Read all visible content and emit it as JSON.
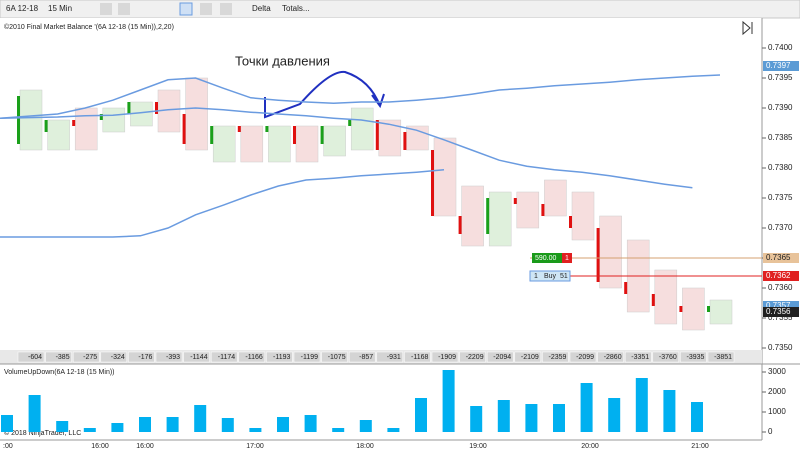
{
  "toolbar": {
    "instrument": "6A 12-18",
    "interval": "15 Min",
    "mode": "Delta",
    "totals": "Totals..."
  },
  "chart_data": [
    {
      "type": "candlestick",
      "title": "©2010 Final Market Balance '(6A 12-18 (15 Min)),2,20)",
      "annotation": "Точки давления",
      "open": [
        0.7384,
        0.7386,
        0.7388,
        0.7388,
        0.7389,
        0.7391,
        0.7389,
        0.7384,
        0.7387,
        0.7386,
        0.7387,
        0.7384,
        0.7387,
        0.7388,
        0.7386,
        0.7383,
        0.7372,
        0.7369,
        0.7375,
        0.7374,
        0.7372,
        0.737,
        0.7361,
        0.7359,
        0.7357,
        0.7356
      ],
      "high": [
        0.7393,
        0.7388,
        0.739,
        0.739,
        0.7391,
        0.7393,
        0.7395,
        0.7387,
        0.7387,
        0.7387,
        0.7387,
        0.7387,
        0.739,
        0.7388,
        0.7387,
        0.7385,
        0.7377,
        0.7376,
        0.7376,
        0.7378,
        0.7376,
        0.7372,
        0.7368,
        0.7363,
        0.736,
        0.7358
      ],
      "low": [
        0.7383,
        0.7383,
        0.7383,
        0.7386,
        0.7387,
        0.7386,
        0.7383,
        0.7381,
        0.7381,
        0.7381,
        0.7381,
        0.7382,
        0.7383,
        0.7382,
        0.7383,
        0.7372,
        0.7367,
        0.7367,
        0.737,
        0.7372,
        0.7368,
        0.736,
        0.7356,
        0.7354,
        0.7353,
        0.7354
      ],
      "close": [
        0.7392,
        0.7388,
        0.7387,
        0.7389,
        0.7391,
        0.7389,
        0.7384,
        0.7387,
        0.7386,
        0.7387,
        0.7384,
        0.7387,
        0.7388,
        0.7383,
        0.7383,
        0.7372,
        0.7369,
        0.7375,
        0.7374,
        0.7372,
        0.737,
        0.7361,
        0.7359,
        0.7357,
        0.7356,
        0.7357
      ],
      "delta": [
        -604,
        -385,
        -275,
        -324,
        -176,
        -393,
        -1144,
        -1174,
        -1166,
        -1193,
        -1199,
        -1075,
        -857,
        -931,
        -1168,
        -1909,
        -2209,
        -2094,
        -2109,
        -2359,
        -2099,
        -2860,
        -3351,
        -3760,
        -3935,
        -3851
      ],
      "series": [
        {
          "color": "#6a9be0",
          "values": [
            0.73883,
            0.7389,
            0.739,
            0.73913,
            0.7393,
            0.73947,
            0.7395,
            0.73933,
            0.73917,
            0.73913,
            0.7391,
            0.73908,
            0.7391,
            0.7391,
            0.73913,
            0.73917,
            0.73923,
            0.7393,
            0.73933,
            0.73937,
            0.7394,
            0.73943,
            0.73947,
            0.7395,
            0.73953,
            0.73955
          ]
        },
        {
          "color": "#6a9be0",
          "values": [
            0.73883,
            0.73885,
            0.73887,
            0.73888,
            0.73892,
            0.73897,
            0.739,
            0.73897,
            0.73893,
            0.7389,
            0.73887,
            0.73883,
            0.7388,
            0.73873,
            0.73863,
            0.73847,
            0.7383,
            0.73813,
            0.73803,
            0.73797,
            0.73793,
            0.73787,
            0.7378,
            0.73773,
            0.73767,
            null
          ]
        },
        {
          "color": "#6a9be0",
          "values": [
            0.73685,
            0.73685,
            0.73685,
            0.73685,
            0.73687,
            0.737,
            0.73722,
            0.73738,
            0.73755,
            0.7377,
            0.7378,
            0.73783,
            0.73787,
            0.7379,
            0.73793,
            0.73797,
            null,
            null,
            null,
            null,
            null,
            null,
            null,
            null,
            null,
            null
          ]
        }
      ],
      "price_markers": [
        {
          "value": 0.7397,
          "color": "#5b9bd5"
        },
        {
          "value": 0.7365,
          "color": "#e8c39a"
        },
        {
          "value": 0.7362,
          "color": "#e02020"
        },
        {
          "value": 0.7357,
          "color": "#5b9bd5"
        },
        {
          "value": 0.7356,
          "color": "#202020"
        }
      ],
      "orders": [
        {
          "price": "590.00",
          "quantity": "1"
        },
        {
          "quantity": "1",
          "side": "Buy",
          "price": "51"
        }
      ],
      "ylim": [
        0.735,
        0.7405
      ],
      "yticks": [
        {
          "value": 0.735,
          "label": "0.7350"
        },
        {
          "value": 0.7355,
          "label": "0.7355"
        },
        {
          "value": 0.736,
          "label": "0.7360"
        },
        {
          "value": 0.7365,
          "label": "0.7365"
        },
        {
          "value": 0.737,
          "label": "0.7370"
        },
        {
          "value": 0.7375,
          "label": "0.7375"
        },
        {
          "value": 0.738,
          "label": "0.7380"
        },
        {
          "value": 0.7385,
          "label": "0.7385"
        },
        {
          "value": 0.739,
          "label": "0.7390"
        },
        {
          "value": 0.7395,
          "label": "0.7395"
        },
        {
          "value": 0.74,
          "label": "0.7400"
        }
      ]
    },
    {
      "type": "bar",
      "title": "VolumeUpDown(6A 12-18 (15 Min))",
      "copyright": "© 2018 NinjaTrader, LLC",
      "color": "#00b0f0",
      "values": [
        850,
        1850,
        550,
        200,
        450,
        750,
        750,
        1350,
        700,
        200,
        750,
        850,
        200,
        600,
        200,
        1700,
        3100,
        1300,
        1600,
        1400,
        1400,
        2450,
        1700,
        2700,
        2100,
        1500
      ],
      "ylim": [
        0,
        3300
      ],
      "yticks": [
        0,
        1000,
        2000,
        3000
      ],
      "xticks": [
        ":00",
        "16:00",
        "16:00",
        "17:00",
        "18:00",
        "19:00",
        "20:00",
        "21:00"
      ]
    }
  ]
}
